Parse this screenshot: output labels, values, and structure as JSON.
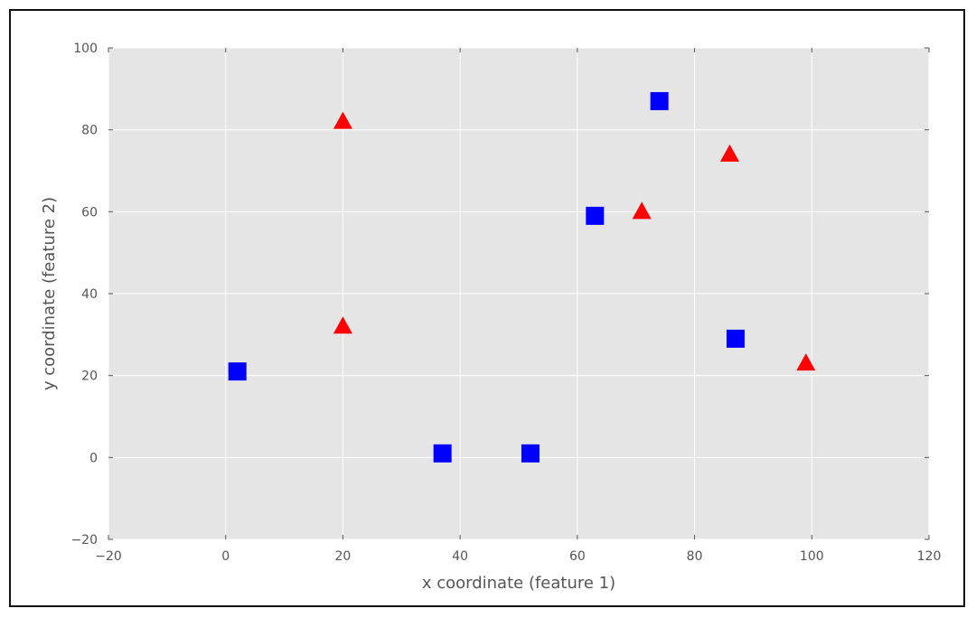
{
  "chart_data": {
    "type": "scatter",
    "xlabel": "x coordinate (feature 1)",
    "ylabel": "y coordinate (feature 2)",
    "xlim": [
      -20,
      120
    ],
    "ylim": [
      -20,
      100
    ],
    "xticks": [
      -20,
      0,
      20,
      40,
      60,
      80,
      100,
      120
    ],
    "yticks": [
      -20,
      0,
      20,
      40,
      60,
      80,
      100
    ],
    "xtick_labels": [
      "−20",
      "0",
      "20",
      "40",
      "60",
      "80",
      "100",
      "120"
    ],
    "ytick_labels": [
      "−20",
      "0",
      "20",
      "40",
      "60",
      "80",
      "100"
    ],
    "grid": true,
    "background": "#e5e5e5",
    "series": [
      {
        "marker": "triangle",
        "color": "#ff0000",
        "points": [
          {
            "x": 20,
            "y": 82
          },
          {
            "x": 20,
            "y": 32
          },
          {
            "x": 71,
            "y": 60
          },
          {
            "x": 86,
            "y": 74
          },
          {
            "x": 99,
            "y": 23
          }
        ]
      },
      {
        "marker": "square",
        "color": "#0000ff",
        "points": [
          {
            "x": 2,
            "y": 21
          },
          {
            "x": 37,
            "y": 1
          },
          {
            "x": 52,
            "y": 1
          },
          {
            "x": 63,
            "y": 59
          },
          {
            "x": 74,
            "y": 87
          },
          {
            "x": 87,
            "y": 29
          }
        ]
      }
    ]
  }
}
